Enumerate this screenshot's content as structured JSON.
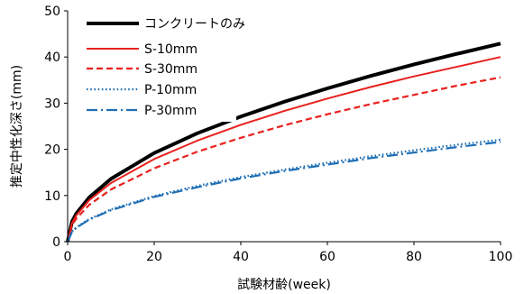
{
  "chart_data": {
    "type": "line",
    "title": "",
    "xlabel": "試験材齢(week)",
    "ylabel": "推定中性化深さ(mm)",
    "xlim": [
      0,
      100
    ],
    "ylim": [
      0,
      50
    ],
    "xticks": [
      "0",
      "20",
      "40",
      "60",
      "80",
      "100"
    ],
    "yticks": [
      "0",
      "10",
      "20",
      "30",
      "40",
      "50"
    ],
    "grid": false,
    "legend_position": "top-left",
    "series": [
      {
        "name": "コンクリートのみ",
        "color": "#000000",
        "style": "solid",
        "x": [
          0,
          1,
          2,
          5,
          10,
          20,
          30,
          40,
          50,
          60,
          70,
          80,
          90,
          100
        ],
        "y": [
          0,
          4.3,
          6.1,
          9.6,
          13.6,
          19.2,
          23.5,
          27.1,
          30.3,
          33.2,
          35.9,
          38.4,
          40.7,
          42.9
        ]
      },
      {
        "name": "S-10mm",
        "color": "#e8211d",
        "style": "solid",
        "x": [
          0,
          1,
          2,
          5,
          10,
          20,
          30,
          40,
          50,
          60,
          70,
          80,
          90,
          100
        ],
        "y": [
          0,
          4.0,
          5.7,
          9.0,
          12.7,
          17.9,
          21.9,
          25.3,
          28.3,
          31.0,
          33.5,
          35.8,
          37.9,
          40.0
        ]
      },
      {
        "name": "S-30mm",
        "color": "#e8211d",
        "style": "dashed",
        "x": [
          0,
          1,
          2,
          5,
          10,
          20,
          30,
          40,
          50,
          60,
          70,
          80,
          90,
          100
        ],
        "y": [
          0,
          3.6,
          5.0,
          8.0,
          11.3,
          15.9,
          19.5,
          22.5,
          25.2,
          27.6,
          29.8,
          31.8,
          33.8,
          35.6
        ]
      },
      {
        "name": "P-10mm",
        "color": "#1f6fb5",
        "style": "dotted",
        "x": [
          0,
          1,
          2,
          5,
          10,
          20,
          30,
          40,
          50,
          60,
          70,
          80,
          90,
          100
        ],
        "y": [
          0,
          2.2,
          3.1,
          4.9,
          7.0,
          9.9,
          12.1,
          14.0,
          15.6,
          17.1,
          18.5,
          19.8,
          21.0,
          22.1
        ]
      },
      {
        "name": "P-30mm",
        "color": "#1f6fb5",
        "style": "dashdot",
        "x": [
          0,
          1,
          2,
          5,
          10,
          20,
          30,
          40,
          50,
          60,
          70,
          80,
          90,
          100
        ],
        "y": [
          0,
          2.1,
          3.0,
          4.8,
          6.8,
          9.7,
          11.8,
          13.7,
          15.3,
          16.7,
          18.1,
          19.3,
          20.5,
          21.6
        ]
      }
    ]
  }
}
